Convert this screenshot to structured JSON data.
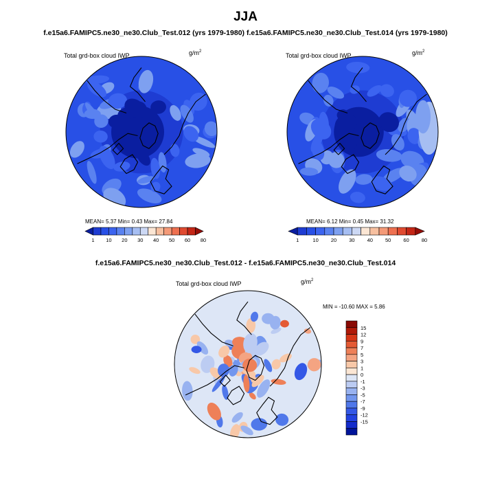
{
  "figure": {
    "title": "JJA",
    "subtitle": "f.e15a6.FAMIPC5.ne30_ne30.Club_Test.012 (yrs 1979-1980)  f.e15a6.FAMIPC5.ne30_ne30.Club_Test.014 (yrs 1979-1980)",
    "diff_title": "f.e15a6.FAMIPC5.ne30_ne30.Club_Test.012 - f.e15a6.FAMIPC5.ne30_ne30.Club_Test.014"
  },
  "colors": {
    "seq": [
      "#0a1ea0",
      "#1e3cd2",
      "#2850e6",
      "#3c64f0",
      "#5a82f0",
      "#7ea0f0",
      "#a6bef2",
      "#ccd8f4",
      "#fbe6d4",
      "#f7c0a0",
      "#f49a78",
      "#ee7050",
      "#e04a30",
      "#c42616",
      "#960e08"
    ],
    "diff": [
      "#00149a",
      "#142ccc",
      "#2242e0",
      "#3458e6",
      "#5078ea",
      "#7296ee",
      "#98b2f0",
      "#bcccf2",
      "#dde6f6",
      "#fbe6d4",
      "#f8c8a8",
      "#f4a482",
      "#ee8058",
      "#e45a34",
      "#d63616",
      "#b01a08",
      "#8a0a04"
    ]
  },
  "chart_data": [
    {
      "type": "heatmap",
      "panel": "left",
      "projection": "polar-stereographic",
      "title": "Total grd-box cloud IWP",
      "units": "g/m",
      "units_exponent": "2",
      "stats_text": "MEAN=  5.37  Min=   0.43  Max=  27.84",
      "stats": {
        "mean": 5.37,
        "min": 0.43,
        "max": 27.84
      },
      "colorbar_levels": [
        "1",
        "10",
        "20",
        "30",
        "40",
        "50",
        "60",
        "80"
      ]
    },
    {
      "type": "heatmap",
      "panel": "right",
      "projection": "polar-stereographic",
      "title": "Total grd-box cloud IWP",
      "units": "g/m",
      "units_exponent": "2",
      "stats_text": "MEAN=  6.12  Min=   0.45  Max=  31.32",
      "stats": {
        "mean": 6.12,
        "min": 0.45,
        "max": 31.32
      },
      "colorbar_levels": [
        "1",
        "10",
        "20",
        "30",
        "40",
        "50",
        "60",
        "80"
      ]
    },
    {
      "type": "heatmap",
      "panel": "difference",
      "projection": "polar-stereographic",
      "title": "Total grd-box cloud IWP",
      "units": "g/m",
      "units_exponent": "2",
      "stats_text": "MIN = -10.60 MAX =   5.86",
      "stats": {
        "min": -10.6,
        "max": 5.86
      },
      "colorbar_levels": [
        "15",
        "12",
        "9",
        "7",
        "5",
        "3",
        "1",
        "0",
        "-1",
        "-3",
        "-5",
        "-7",
        "-9",
        "-12",
        "-15"
      ]
    }
  ]
}
